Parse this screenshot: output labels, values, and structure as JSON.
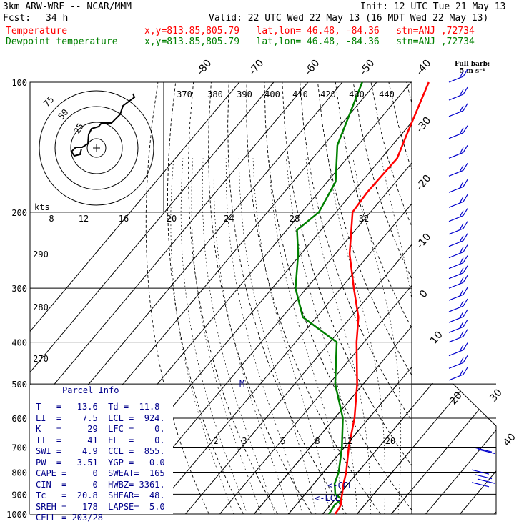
{
  "header": {
    "model": "3km ARW-WRF -- NCAR/MMM",
    "init": "Init: 12 UTC Tue 21 May 13",
    "fcst_label": "Fcst:",
    "fcst_value": "34 h",
    "valid": "Valid: 22 UTC Wed 22 May 13 (16 MDT Wed 22 May 13)",
    "temp_label": "Temperature",
    "temp_info": "x,y=813.85,805.79   lat,lon= 46.48, -84.36   stn=ANJ ,72734",
    "dew_label": "Dewpoint temperature",
    "dew_info": "x,y=813.85,805.79   lat,lon= 46.48, -84.36   stn=ANJ ,72734",
    "barb_legend_1": "Full barb:",
    "barb_legend_2": "5 m s⁻¹"
  },
  "colors": {
    "temperature": "#ff0000",
    "dewpoint": "#008000",
    "axes": "#000000",
    "wind": "#0000cc",
    "hodograph": "#000000"
  },
  "chart_data": {
    "type": "skew-T",
    "pressure_ticks": [
      100,
      200,
      300,
      400,
      500,
      600,
      700,
      800,
      900,
      1000
    ],
    "pressure_range": [
      100,
      1000
    ],
    "temperature_ticks": [
      -80,
      -70,
      -60,
      -50,
      -40,
      -30,
      -20,
      -10,
      0,
      10,
      20,
      30,
      40
    ],
    "theta_e_labels": [
      370,
      380,
      390,
      400,
      410,
      420,
      430,
      440
    ],
    "theta_e_values": [
      290,
      280,
      270
    ],
    "mixing_ratio_labels": [
      2,
      3,
      5,
      8,
      12,
      20
    ],
    "mixing_ratio_top_labels": [
      8,
      12,
      16,
      20,
      24,
      28,
      32
    ],
    "temperature_profile": [
      {
        "p": 1000,
        "t": 13.6
      },
      {
        "p": 975,
        "t": 13.4
      },
      {
        "p": 950,
        "t": 13.0
      },
      {
        "p": 925,
        "t": 11.8
      },
      {
        "p": 900,
        "t": 10.8
      },
      {
        "p": 850,
        "t": 8.6
      },
      {
        "p": 800,
        "t": 6.6
      },
      {
        "p": 700,
        "t": 1.2
      },
      {
        "p": 600,
        "t": -4.2
      },
      {
        "p": 500,
        "t": -11.8
      },
      {
        "p": 400,
        "t": -22.2
      },
      {
        "p": 350,
        "t": -27.8
      },
      {
        "p": 300,
        "t": -36.2
      },
      {
        "p": 250,
        "t": -45.8
      },
      {
        "p": 200,
        "t": -55.2
      },
      {
        "p": 180,
        "t": -55.8
      },
      {
        "p": 150,
        "t": -55.4
      },
      {
        "p": 130,
        "t": -58.8
      },
      {
        "p": 100,
        "t": -64.8
      }
    ],
    "dewpoint_profile": [
      {
        "p": 1000,
        "t": 11.8
      },
      {
        "p": 950,
        "t": 11.2
      },
      {
        "p": 925,
        "t": 12.0
      },
      {
        "p": 900,
        "t": 8.8
      },
      {
        "p": 850,
        "t": 6.0
      },
      {
        "p": 800,
        "t": 4.4
      },
      {
        "p": 700,
        "t": -0.8
      },
      {
        "p": 600,
        "t": -7.6
      },
      {
        "p": 500,
        "t": -18.2
      },
      {
        "p": 400,
        "t": -28.0
      },
      {
        "p": 350,
        "t": -44.0
      },
      {
        "p": 300,
        "t": -53.2
      },
      {
        "p": 250,
        "t": -60.8
      },
      {
        "p": 220,
        "t": -67.0
      },
      {
        "p": 200,
        "t": -65.0
      },
      {
        "p": 170,
        "t": -67.6
      },
      {
        "p": 140,
        "t": -76.0
      },
      {
        "p": 100,
        "t": -84.2
      }
    ],
    "wind_barbs_pressure": [
      100,
      110,
      120,
      135,
      150,
      165,
      180,
      195,
      210,
      225,
      240,
      255,
      270,
      285,
      300,
      320,
      340,
      360,
      380,
      400,
      430,
      460,
      490
    ],
    "annotations": [
      "M",
      "<-CCL",
      "<-LCL"
    ],
    "hodograph_rings_kts": [
      "25",
      "50",
      "75"
    ],
    "hodograph_units": "kts"
  },
  "parcel_info": {
    "title": "Parcel Info",
    "rows": [
      "T   =   13.6  Td =  11.8",
      "LI  =    7.5  LCL =  924.",
      "K   =     29  LFC =    0.",
      "TT  =     41  EL  =    0.",
      "SWI =    4.9  CCL =  855.",
      "PW  =   3.51  YGP =   0.0",
      "CAPE =     0  SWEAT=  165",
      "CIN  =     0  HWBZ= 3361.",
      "Tc   =  20.8  SHEAR=  48.",
      "SREH =   178  LAPSE=  5.0",
      "CELL = 203/28"
    ]
  }
}
